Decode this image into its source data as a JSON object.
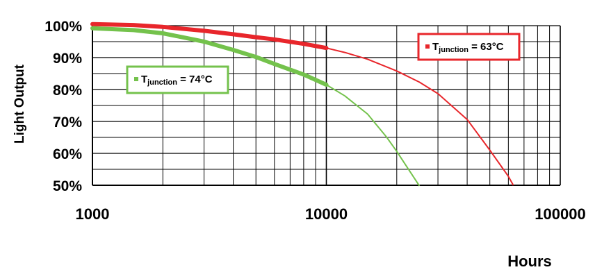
{
  "chart_data": {
    "type": "line",
    "title": "",
    "xlabel": "Hours",
    "ylabel": "Light Output",
    "x_scale": "log",
    "xlim": [
      1000,
      100000
    ],
    "ylim": [
      50,
      100
    ],
    "x_ticks": [
      "1000",
      "10000",
      "100000"
    ],
    "y_ticks": [
      "50%",
      "60%",
      "70%",
      "80%",
      "90%",
      "100%"
    ],
    "grid": true,
    "series": [
      {
        "name": "T_junction = 63°C",
        "name_main": "T",
        "name_sub": "junction",
        "name_rest": " = 63°C",
        "color": "#e8262b",
        "legend_position": "top-right",
        "x": [
          1000,
          1500,
          2000,
          3000,
          4000,
          5000,
          6000,
          8000,
          10000,
          12000,
          15000,
          20000,
          25000,
          30000,
          40000,
          50000,
          60000,
          63000
        ],
        "y": [
          100.5,
          100.2,
          99.6,
          98.4,
          97.3,
          96.4,
          95.7,
          94.3,
          93.0,
          91.6,
          89.5,
          85.8,
          82.3,
          78.7,
          70.6,
          61.0,
          52.8,
          50.0
        ]
      },
      {
        "name": "T_junction = 74°C",
        "name_main": "T",
        "name_sub": "junction",
        "name_rest": " = 74°C",
        "color": "#74c24c",
        "legend_position": "upper-left",
        "x": [
          1000,
          1500,
          2000,
          3000,
          4000,
          5000,
          6000,
          8000,
          10000,
          12000,
          15000,
          18000,
          20000,
          22000,
          25000
        ],
        "y": [
          99.2,
          98.6,
          97.6,
          95.0,
          92.4,
          90.2,
          88.0,
          84.7,
          81.5,
          78.0,
          72.3,
          65.3,
          60.6,
          56.0,
          49.8
        ]
      }
    ]
  }
}
